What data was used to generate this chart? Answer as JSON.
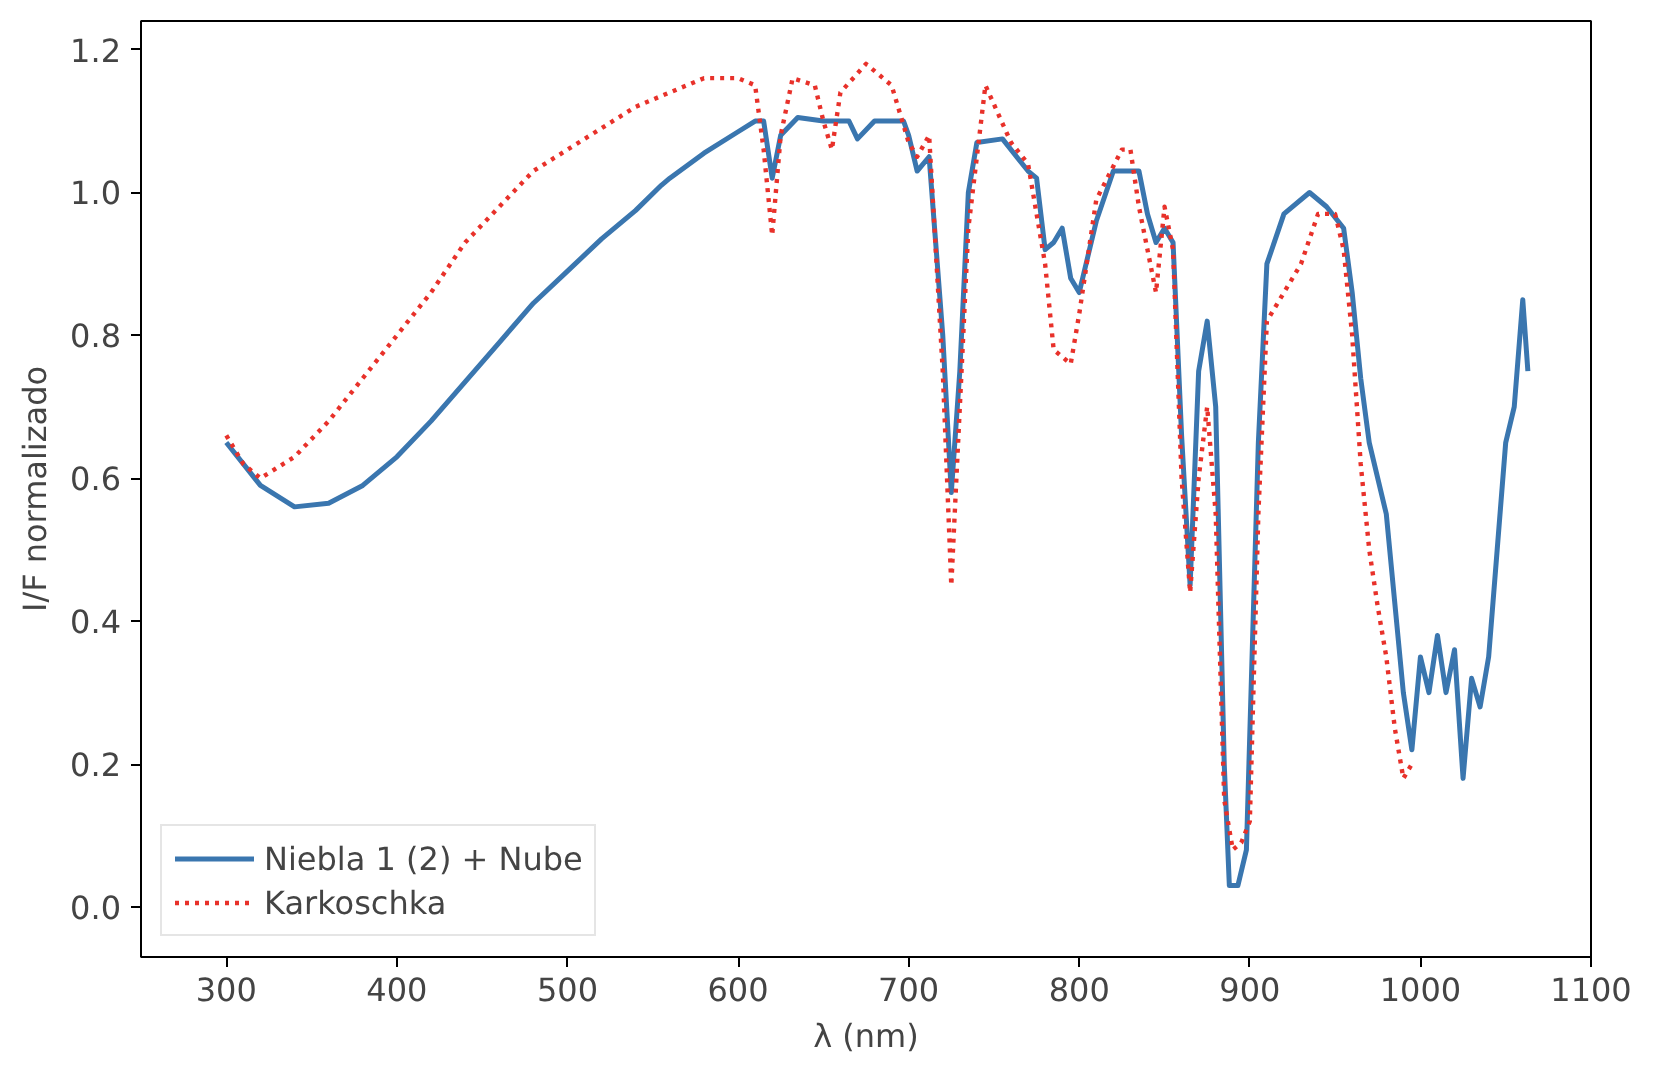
{
  "chart_data": {
    "type": "line",
    "xlabel": "λ (nm)",
    "ylabel": "I/F normalizado",
    "xlim": [
      250,
      1100
    ],
    "ylim": [
      -0.07,
      1.24
    ],
    "xticks": [
      300,
      400,
      500,
      600,
      700,
      800,
      900,
      1000,
      1100
    ],
    "yticks": [
      {
        "value": 0,
        "label": "0.0"
      },
      {
        "value": 0.2,
        "label": "0.2"
      },
      {
        "value": 0.4,
        "label": "0.4"
      },
      {
        "value": 0.6,
        "label": "0.6"
      },
      {
        "value": 0.8,
        "label": "0.8"
      },
      {
        "value": 1.0,
        "label": "1.0"
      },
      {
        "value": 1.2,
        "label": "1.2"
      }
    ],
    "grid": false,
    "legend": "bottom left",
    "series": [
      {
        "name": "Niebla 1 (2) + Nube",
        "color": "#3a76af",
        "line_style": "solid",
        "x": [
          300,
          320,
          340,
          360,
          380,
          400,
          420,
          440,
          460,
          480,
          500,
          520,
          540,
          555,
          560,
          580,
          600,
          610,
          615,
          620,
          625,
          635,
          650,
          665,
          670,
          680,
          690,
          697,
          700,
          705,
          712,
          720,
          725,
          730,
          735,
          740,
          755,
          770,
          775,
          780,
          785,
          790,
          795,
          800,
          810,
          820,
          835,
          840,
          845,
          850,
          855,
          860,
          865,
          870,
          875,
          880,
          885,
          888,
          893,
          898,
          905,
          910,
          920,
          935,
          945,
          955,
          960,
          965,
          970,
          980,
          990,
          995,
          1000,
          1005,
          1010,
          1015,
          1020,
          1025,
          1030,
          1035,
          1040,
          1045,
          1050,
          1055,
          1060,
          1063
        ],
        "values": [
          0.65,
          0.59,
          0.56,
          0.565,
          0.59,
          0.63,
          0.68,
          0.735,
          0.79,
          0.845,
          0.89,
          0.935,
          0.975,
          1.01,
          1.02,
          1.055,
          1.085,
          1.1,
          1.1,
          1.02,
          1.08,
          1.105,
          1.1,
          1.1,
          1.075,
          1.1,
          1.1,
          1.1,
          1.08,
          1.03,
          1.05,
          0.8,
          0.58,
          0.75,
          1.0,
          1.07,
          1.075,
          1.03,
          1.02,
          0.92,
          0.93,
          0.95,
          0.88,
          0.86,
          0.96,
          1.03,
          1.03,
          0.97,
          0.93,
          0.95,
          0.93,
          0.66,
          0.45,
          0.75,
          0.82,
          0.7,
          0.2,
          0.03,
          0.03,
          0.08,
          0.65,
          0.9,
          0.97,
          1.0,
          0.98,
          0.95,
          0.86,
          0.74,
          0.65,
          0.55,
          0.3,
          0.22,
          0.35,
          0.3,
          0.38,
          0.3,
          0.36,
          0.18,
          0.32,
          0.28,
          0.35,
          0.5,
          0.65,
          0.7,
          0.85,
          0.75
        ]
      },
      {
        "name": "Karkoschka",
        "color": "#e8312a",
        "line_style": "dotted",
        "x": [
          300,
          310,
          320,
          340,
          360,
          380,
          400,
          420,
          440,
          460,
          480,
          500,
          520,
          540,
          560,
          580,
          600,
          610,
          615,
          620,
          625,
          632,
          645,
          650,
          655,
          660,
          675,
          690,
          700,
          705,
          712,
          720,
          725,
          730,
          735,
          745,
          760,
          770,
          780,
          785,
          795,
          800,
          810,
          825,
          830,
          835,
          840,
          845,
          850,
          855,
          860,
          865,
          870,
          875,
          880,
          885,
          890,
          895,
          900,
          905,
          910,
          920,
          930,
          940,
          950,
          955,
          960,
          965,
          970,
          975,
          980,
          985,
          990,
          995
        ],
        "values": [
          0.66,
          0.62,
          0.6,
          0.63,
          0.68,
          0.74,
          0.8,
          0.86,
          0.93,
          0.98,
          1.03,
          1.06,
          1.09,
          1.12,
          1.14,
          1.16,
          1.16,
          1.15,
          1.06,
          0.94,
          1.08,
          1.16,
          1.15,
          1.1,
          1.06,
          1.14,
          1.18,
          1.15,
          1.07,
          1.05,
          1.08,
          0.75,
          0.45,
          0.7,
          0.95,
          1.15,
          1.07,
          1.04,
          0.9,
          0.78,
          0.76,
          0.83,
          0.99,
          1.06,
          1.06,
          0.98,
          0.92,
          0.86,
          0.98,
          0.92,
          0.6,
          0.44,
          0.6,
          0.7,
          0.55,
          0.15,
          0.08,
          0.09,
          0.12,
          0.55,
          0.82,
          0.86,
          0.9,
          0.97,
          0.97,
          0.92,
          0.8,
          0.62,
          0.5,
          0.42,
          0.35,
          0.25,
          0.18,
          0.2
        ]
      }
    ]
  }
}
